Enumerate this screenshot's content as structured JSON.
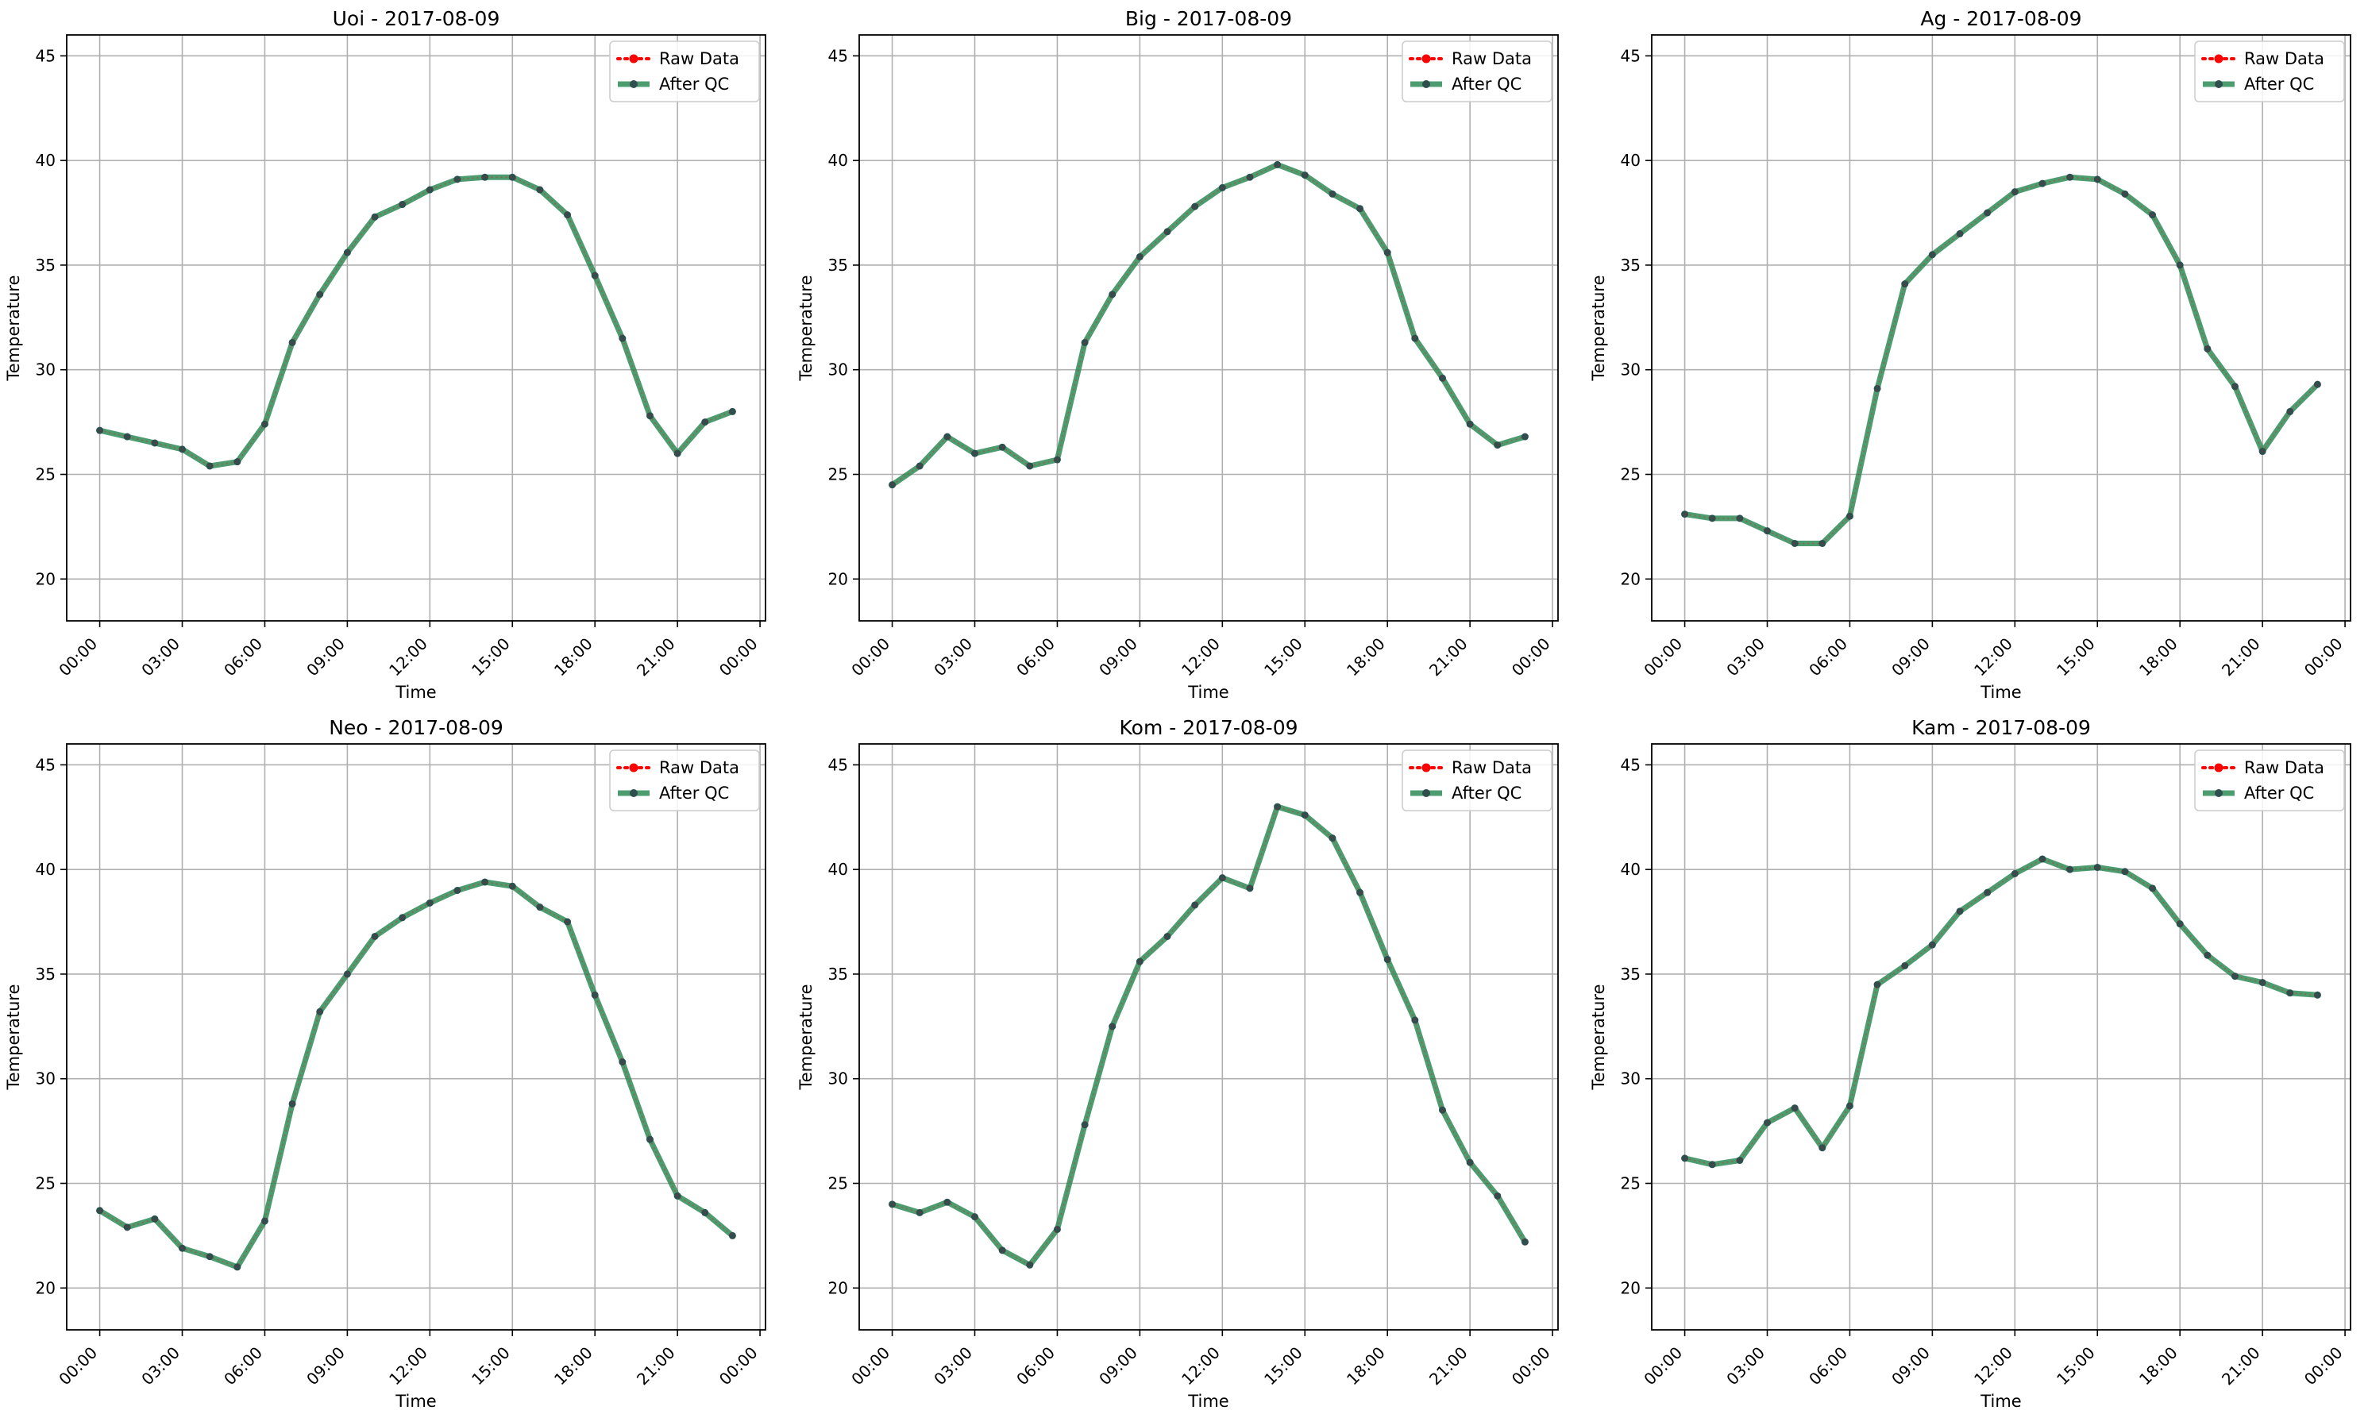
{
  "figure": {
    "xlabel": "Time",
    "ylabel": "Temperature",
    "x_ticks": [
      "00:00",
      "03:00",
      "06:00",
      "09:00",
      "12:00",
      "15:00",
      "18:00",
      "21:00",
      "00:00"
    ],
    "y_ticks": [
      20,
      25,
      30,
      35,
      40,
      45
    ],
    "legend": [
      "Raw Data",
      "After QC"
    ],
    "colors": {
      "raw": "#ff0000",
      "qc": "#2e8b57",
      "qc_marker": "#2f4f4f",
      "grid": "#b0b0b0"
    }
  },
  "chart_data": [
    {
      "type": "line",
      "title": "Uoi - 2017-08-09",
      "xlabel": "Time",
      "ylabel": "Temperature",
      "x": [
        "00:00",
        "01:00",
        "02:00",
        "03:00",
        "04:00",
        "05:00",
        "06:00",
        "07:00",
        "08:00",
        "09:00",
        "10:00",
        "11:00",
        "12:00",
        "13:00",
        "14:00",
        "15:00",
        "16:00",
        "17:00",
        "18:00",
        "19:00",
        "20:00",
        "21:00",
        "22:00",
        "23:00"
      ],
      "xlim": [
        "2017-08-08 22:48",
        "2017-08-10 00:12"
      ],
      "ylim": [
        18,
        46
      ],
      "grid": true,
      "legend_position": "top-right",
      "series": [
        {
          "name": "Raw Data",
          "values": [
            27.1,
            26.8,
            26.5,
            26.2,
            25.4,
            25.6,
            27.4,
            31.3,
            33.6,
            35.6,
            37.3,
            37.9,
            38.6,
            39.1,
            39.2,
            39.2,
            38.6,
            37.4,
            34.5,
            31.5,
            27.8,
            26.0,
            27.5,
            28.0
          ]
        },
        {
          "name": "After QC",
          "values": [
            27.1,
            26.8,
            26.5,
            26.2,
            25.4,
            25.6,
            27.4,
            31.3,
            33.6,
            35.6,
            37.3,
            37.9,
            38.6,
            39.1,
            39.2,
            39.2,
            38.6,
            37.4,
            34.5,
            31.5,
            27.8,
            26.0,
            27.5,
            28.0
          ]
        }
      ]
    },
    {
      "type": "line",
      "title": "Big - 2017-08-09",
      "xlabel": "Time",
      "ylabel": "Temperature",
      "x": [
        "00:00",
        "01:00",
        "02:00",
        "03:00",
        "04:00",
        "05:00",
        "06:00",
        "07:00",
        "08:00",
        "09:00",
        "10:00",
        "11:00",
        "12:00",
        "13:00",
        "14:00",
        "15:00",
        "16:00",
        "17:00",
        "18:00",
        "19:00",
        "20:00",
        "21:00",
        "22:00",
        "23:00"
      ],
      "xlim": [
        "2017-08-08 22:48",
        "2017-08-10 00:12"
      ],
      "ylim": [
        18,
        46
      ],
      "grid": true,
      "legend_position": "top-right",
      "series": [
        {
          "name": "Raw Data",
          "values": [
            24.5,
            25.4,
            26.8,
            26.0,
            26.3,
            25.4,
            25.7,
            31.3,
            33.6,
            35.4,
            36.6,
            37.8,
            38.7,
            39.2,
            39.8,
            39.3,
            38.4,
            37.7,
            35.6,
            31.5,
            29.6,
            27.4,
            26.4,
            26.8
          ]
        },
        {
          "name": "After QC",
          "values": [
            24.5,
            25.4,
            26.8,
            26.0,
            26.3,
            25.4,
            25.7,
            31.3,
            33.6,
            35.4,
            36.6,
            37.8,
            38.7,
            39.2,
            39.8,
            39.3,
            38.4,
            37.7,
            35.6,
            31.5,
            29.6,
            27.4,
            26.4,
            26.8
          ]
        }
      ]
    },
    {
      "type": "line",
      "title": "Ag - 2017-08-09",
      "xlabel": "Time",
      "ylabel": "Temperature",
      "x": [
        "00:00",
        "01:00",
        "02:00",
        "03:00",
        "04:00",
        "05:00",
        "06:00",
        "07:00",
        "08:00",
        "09:00",
        "10:00",
        "11:00",
        "12:00",
        "13:00",
        "14:00",
        "15:00",
        "16:00",
        "17:00",
        "18:00",
        "19:00",
        "20:00",
        "21:00",
        "22:00",
        "23:00"
      ],
      "xlim": [
        "2017-08-08 22:48",
        "2017-08-10 00:12"
      ],
      "ylim": [
        18,
        46
      ],
      "grid": true,
      "legend_position": "top-right",
      "series": [
        {
          "name": "Raw Data",
          "values": [
            23.1,
            22.9,
            22.9,
            22.3,
            21.7,
            21.7,
            23.0,
            29.1,
            34.1,
            35.5,
            36.5,
            37.5,
            38.5,
            38.9,
            39.2,
            39.1,
            38.4,
            37.4,
            35.0,
            31.0,
            29.2,
            26.1,
            28.0,
            29.3
          ]
        },
        {
          "name": "After QC",
          "values": [
            23.1,
            22.9,
            22.9,
            22.3,
            21.7,
            21.7,
            23.0,
            29.1,
            34.1,
            35.5,
            36.5,
            37.5,
            38.5,
            38.9,
            39.2,
            39.1,
            38.4,
            37.4,
            35.0,
            31.0,
            29.2,
            26.1,
            28.0,
            29.3
          ]
        }
      ]
    },
    {
      "type": "line",
      "title": "Neo - 2017-08-09",
      "xlabel": "Time",
      "ylabel": "Temperature",
      "x": [
        "00:00",
        "01:00",
        "02:00",
        "03:00",
        "04:00",
        "05:00",
        "06:00",
        "07:00",
        "08:00",
        "09:00",
        "10:00",
        "11:00",
        "12:00",
        "13:00",
        "14:00",
        "15:00",
        "16:00",
        "17:00",
        "18:00",
        "19:00",
        "20:00",
        "21:00",
        "22:00",
        "23:00"
      ],
      "xlim": [
        "2017-08-08 22:48",
        "2017-08-10 00:12"
      ],
      "ylim": [
        18,
        46
      ],
      "grid": true,
      "legend_position": "top-right",
      "series": [
        {
          "name": "Raw Data",
          "values": [
            23.7,
            22.9,
            23.3,
            21.9,
            21.5,
            21.0,
            23.2,
            28.8,
            33.2,
            35.0,
            36.8,
            37.7,
            38.4,
            39.0,
            39.4,
            39.2,
            38.2,
            37.5,
            34.0,
            30.8,
            27.1,
            24.4,
            23.6,
            22.5
          ]
        },
        {
          "name": "After QC",
          "values": [
            23.7,
            22.9,
            23.3,
            21.9,
            21.5,
            21.0,
            23.2,
            28.8,
            33.2,
            35.0,
            36.8,
            37.7,
            38.4,
            39.0,
            39.4,
            39.2,
            38.2,
            37.5,
            34.0,
            30.8,
            27.1,
            24.4,
            23.6,
            22.5
          ]
        }
      ]
    },
    {
      "type": "line",
      "title": "Kom - 2017-08-09",
      "xlabel": "Time",
      "ylabel": "Temperature",
      "x": [
        "00:00",
        "01:00",
        "02:00",
        "03:00",
        "04:00",
        "05:00",
        "06:00",
        "07:00",
        "08:00",
        "09:00",
        "10:00",
        "11:00",
        "12:00",
        "13:00",
        "14:00",
        "15:00",
        "16:00",
        "17:00",
        "18:00",
        "19:00",
        "20:00",
        "21:00",
        "22:00",
        "23:00"
      ],
      "xlim": [
        "2017-08-08 22:48",
        "2017-08-10 00:12"
      ],
      "ylim": [
        18,
        46
      ],
      "grid": true,
      "legend_position": "top-right",
      "series": [
        {
          "name": "Raw Data",
          "values": [
            24.0,
            23.6,
            24.1,
            23.4,
            21.8,
            21.1,
            22.8,
            27.8,
            32.5,
            35.6,
            36.8,
            38.3,
            39.6,
            39.1,
            43.0,
            42.6,
            41.5,
            38.9,
            35.7,
            32.8,
            28.5,
            26.0,
            24.4,
            22.2
          ]
        },
        {
          "name": "After QC",
          "values": [
            24.0,
            23.6,
            24.1,
            23.4,
            21.8,
            21.1,
            22.8,
            27.8,
            32.5,
            35.6,
            36.8,
            38.3,
            39.6,
            39.1,
            43.0,
            42.6,
            41.5,
            38.9,
            35.7,
            32.8,
            28.5,
            26.0,
            24.4,
            22.2
          ]
        }
      ]
    },
    {
      "type": "line",
      "title": "Kam - 2017-08-09",
      "xlabel": "Time",
      "ylabel": "Temperature",
      "x": [
        "00:00",
        "01:00",
        "02:00",
        "03:00",
        "04:00",
        "05:00",
        "06:00",
        "07:00",
        "08:00",
        "09:00",
        "10:00",
        "11:00",
        "12:00",
        "13:00",
        "14:00",
        "15:00",
        "16:00",
        "17:00",
        "18:00",
        "19:00",
        "20:00",
        "21:00",
        "22:00",
        "23:00"
      ],
      "xlim": [
        "2017-08-08 22:48",
        "2017-08-10 00:12"
      ],
      "ylim": [
        18,
        46
      ],
      "grid": true,
      "legend_position": "top-right",
      "series": [
        {
          "name": "Raw Data",
          "values": [
            26.2,
            25.9,
            26.1,
            27.9,
            28.6,
            26.7,
            28.7,
            34.5,
            35.4,
            36.4,
            38.0,
            38.9,
            39.8,
            40.5,
            40.0,
            40.1,
            39.9,
            39.1,
            37.4,
            35.9,
            34.9,
            34.6,
            34.1,
            34.0
          ]
        },
        {
          "name": "After QC",
          "values": [
            26.2,
            25.9,
            26.1,
            27.9,
            28.6,
            26.7,
            28.7,
            34.5,
            35.4,
            36.4,
            38.0,
            38.9,
            39.8,
            40.5,
            40.0,
            40.1,
            39.9,
            39.1,
            37.4,
            35.9,
            34.9,
            34.6,
            34.1,
            34.0
          ]
        }
      ]
    }
  ]
}
